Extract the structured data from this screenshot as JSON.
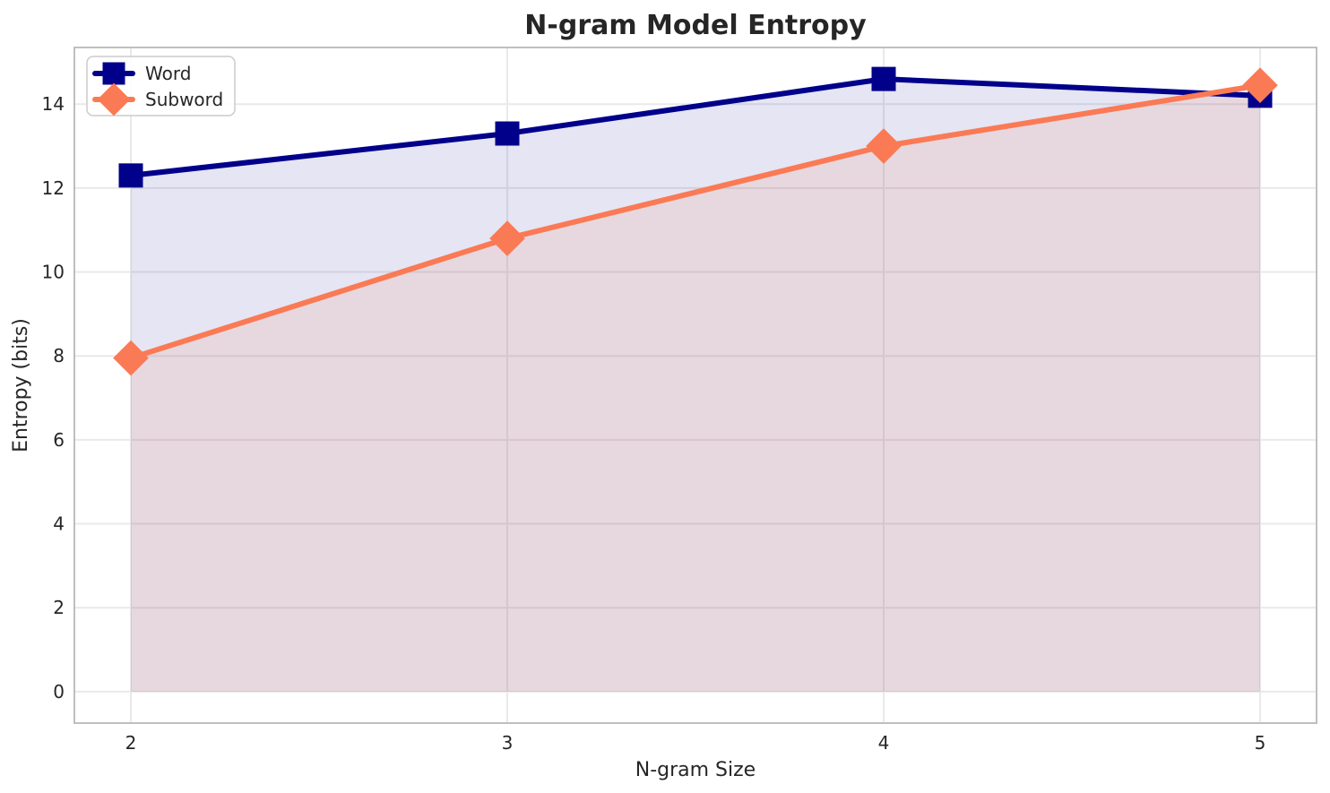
{
  "chart_data": {
    "type": "line",
    "title": "N-gram Model Entropy",
    "xlabel": "N-gram Size",
    "ylabel": "Entropy (bits)",
    "x": [
      2,
      3,
      4,
      5
    ],
    "series": [
      {
        "name": "Word",
        "values": [
          12.3,
          13.3,
          14.6,
          14.2
        ],
        "color": "#00008B",
        "marker": "square",
        "fill": "rgba(0, 0, 139, 0.10)"
      },
      {
        "name": "Subword",
        "values": [
          7.95,
          10.8,
          13.0,
          14.45
        ],
        "color": "#FA7A55",
        "marker": "diamond",
        "fill": "rgba(250, 122, 85, 0.13)"
      }
    ],
    "xticks": [
      2,
      3,
      4,
      5
    ],
    "yticks": [
      0,
      2,
      4,
      6,
      8,
      10,
      12,
      14
    ],
    "xlim": [
      1.85,
      5.15
    ],
    "ylim": [
      -0.75,
      15.35
    ],
    "grid": true,
    "fill_baseline": 0,
    "legend_position": "upper left",
    "legend_labels": [
      "Word",
      "Subword"
    ]
  },
  "style": {
    "grid_color": "#E9E9E9",
    "spine_color": "#BFBFBF",
    "text_color": "#262626",
    "legend_border_color": "#CCCCCC",
    "legend_background": "rgba(255,255,255,0.85)"
  }
}
